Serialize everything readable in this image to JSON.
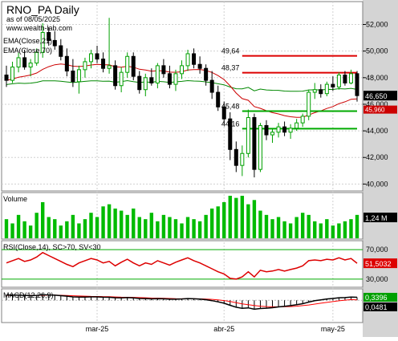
{
  "header": {
    "title": "RNO_PA Daily",
    "date_line": "as of 08/05/2025",
    "site": "www.wealth-lab.com"
  },
  "colors": {
    "up": "#00a000",
    "down": "#000000",
    "ema21": "#cc0000",
    "ema70": "#008800",
    "support": "#00aa00",
    "resistance": "#dd0000",
    "axis_bg": "#d4d4d4",
    "grid": "#d0d0d0",
    "last_price_bg": "#000000",
    "rsi_line": "#dd0000",
    "macd_line": "#000000",
    "macd_signal": "#ff0000",
    "volume_bar": "#00bb00"
  },
  "chart_data": [
    {
      "type": "candlestick",
      "name": "price-panel",
      "indicators": [
        "EMA(Close,21)",
        "EMA(Close,70)"
      ],
      "ylim": [
        39.6,
        53.6
      ],
      "y_ticks": [
        "52,000",
        "50,000",
        "48,000",
        "46,000",
        "44,000",
        "42,000",
        "40,000"
      ],
      "y_tick_values": [
        52,
        50,
        48,
        46,
        44,
        42,
        40
      ],
      "x_labels": [
        "mar-25",
        "abr-25",
        "may-25"
      ],
      "x_label_index": [
        15,
        36,
        54
      ],
      "last_price": "46,650",
      "last_price_value": 46.65,
      "ema21_tag": "45,960",
      "ema21_tag_value": 45.96,
      "levels": [
        {
          "label": "49,64",
          "value": 49.64,
          "kind": "resistance",
          "start": 39,
          "end": 58
        },
        {
          "label": "48,37",
          "value": 48.37,
          "kind": "resistance",
          "start": 39,
          "end": 58
        },
        {
          "label": "45,48",
          "value": 45.48,
          "kind": "support",
          "start": 39,
          "end": 58
        },
        {
          "label": "44,16",
          "value": 44.16,
          "kind": "support",
          "start": 39,
          "end": 58
        }
      ],
      "ohlc": [
        [
          48.2,
          48.9,
          47.3,
          47.8
        ],
        [
          47.8,
          49.2,
          47.6,
          48.8
        ],
        [
          48.8,
          49.9,
          48.4,
          49.5
        ],
        [
          49.5,
          50.1,
          48.6,
          48.8
        ],
        [
          48.8,
          49.4,
          48.1,
          49.1
        ],
        [
          49.1,
          50.2,
          48.9,
          49.9
        ],
        [
          49.9,
          52.1,
          49.5,
          51.4
        ],
        [
          51.4,
          51.8,
          50.4,
          50.8
        ],
        [
          50.8,
          51.5,
          50.1,
          50.4
        ],
        [
          50.4,
          50.9,
          49.3,
          49.6
        ],
        [
          49.6,
          50.2,
          48.1,
          48.5
        ],
        [
          48.5,
          49.4,
          47.3,
          47.7
        ],
        [
          47.7,
          48.9,
          46.8,
          48.6
        ],
        [
          48.6,
          49.5,
          48.0,
          49.2
        ],
        [
          49.2,
          50.1,
          48.7,
          49.8
        ],
        [
          49.8,
          50.4,
          49.1,
          49.4
        ],
        [
          49.4,
          49.9,
          48.4,
          48.7
        ],
        [
          48.7,
          52.5,
          48.3,
          48.9
        ],
        [
          48.9,
          49.3,
          47.1,
          47.4
        ],
        [
          47.4,
          48.8,
          46.9,
          48.4
        ],
        [
          48.4,
          49.9,
          48.0,
          49.6
        ],
        [
          49.6,
          49.9,
          47.8,
          48.1
        ],
        [
          48.1,
          48.5,
          46.8,
          47.1
        ],
        [
          47.1,
          48.3,
          46.6,
          48.0
        ],
        [
          48.0,
          48.7,
          47.4,
          47.6
        ],
        [
          47.6,
          49.1,
          47.2,
          48.9
        ],
        [
          48.9,
          49.4,
          48.0,
          48.3
        ],
        [
          48.3,
          48.9,
          47.2,
          47.5
        ],
        [
          47.5,
          48.6,
          47.0,
          48.3
        ],
        [
          48.3,
          49.3,
          47.9,
          48.9
        ],
        [
          48.9,
          50.1,
          48.5,
          49.8
        ],
        [
          49.8,
          50.2,
          48.7,
          49.0
        ],
        [
          49.0,
          49.6,
          48.3,
          48.7
        ],
        [
          48.7,
          49.0,
          47.4,
          47.8
        ],
        [
          47.8,
          48.5,
          46.4,
          46.9
        ],
        [
          46.9,
          47.4,
          45.5,
          45.8
        ],
        [
          45.8,
          46.2,
          44.5,
          44.9
        ],
        [
          44.9,
          45.4,
          41.8,
          42.6
        ],
        [
          42.6,
          43.2,
          40.9,
          41.4
        ],
        [
          41.4,
          42.9,
          40.6,
          42.3
        ],
        [
          42.3,
          45.6,
          42.0,
          45.0
        ],
        [
          45.0,
          45.3,
          40.5,
          41.1
        ],
        [
          41.1,
          44.6,
          40.9,
          44.4
        ],
        [
          44.4,
          44.8,
          43.3,
          43.7
        ],
        [
          43.7,
          44.2,
          43.1,
          43.9
        ],
        [
          43.9,
          44.6,
          43.5,
          44.3
        ],
        [
          44.3,
          44.7,
          43.6,
          43.9
        ],
        [
          43.9,
          44.5,
          43.4,
          44.2
        ],
        [
          44.2,
          44.9,
          44.0,
          44.6
        ],
        [
          44.6,
          45.3,
          44.3,
          45.1
        ],
        [
          45.1,
          47.1,
          44.8,
          46.9
        ],
        [
          46.9,
          47.6,
          46.4,
          47.1
        ],
        [
          47.1,
          47.5,
          46.5,
          46.8
        ],
        [
          46.8,
          47.7,
          46.6,
          47.5
        ],
        [
          47.5,
          48.1,
          47.0,
          47.3
        ],
        [
          47.3,
          48.4,
          47.1,
          48.2
        ],
        [
          48.2,
          48.5,
          47.4,
          47.6
        ],
        [
          47.6,
          48.6,
          47.5,
          48.3
        ],
        [
          48.3,
          48.5,
          46.2,
          46.65
        ]
      ]
    },
    {
      "type": "bar",
      "name": "volume-panel",
      "title": "Volume",
      "last_value": "1,24 M",
      "values": [
        0.45,
        0.35,
        0.55,
        0.4,
        0.3,
        0.6,
        0.85,
        0.5,
        0.45,
        0.3,
        0.4,
        0.55,
        0.35,
        0.45,
        0.6,
        0.5,
        0.75,
        0.8,
        0.7,
        0.65,
        0.55,
        0.7,
        0.5,
        0.45,
        0.6,
        0.4,
        0.55,
        0.5,
        0.45,
        0.35,
        0.5,
        0.45,
        0.4,
        0.55,
        0.7,
        0.75,
        0.85,
        1.0,
        0.95,
        1.0,
        0.8,
        0.9,
        0.65,
        0.55,
        0.45,
        0.5,
        0.4,
        0.35,
        0.5,
        0.6,
        0.55,
        0.4,
        0.35,
        0.45,
        0.3,
        0.35,
        0.4,
        0.45,
        0.55
      ]
    },
    {
      "type": "line",
      "name": "rsi-panel",
      "title": "RSI(Close,14), SC>70, SV<30",
      "ylim": [
        20,
        80
      ],
      "y_ticks": [
        "70,000",
        "30,000"
      ],
      "y_tick_values": [
        70,
        30
      ],
      "last_value": "51,5032",
      "last_value_num": 51.5,
      "values": [
        52,
        55,
        58,
        54,
        56,
        60,
        66,
        62,
        58,
        54,
        50,
        47,
        52,
        55,
        58,
        56,
        52,
        54,
        48,
        53,
        57,
        52,
        48,
        52,
        50,
        55,
        52,
        49,
        53,
        56,
        59,
        55,
        52,
        48,
        44,
        40,
        37,
        31,
        30,
        33,
        40,
        33,
        42,
        40,
        41,
        43,
        41,
        43,
        45,
        48,
        55,
        56,
        55,
        57,
        56,
        59,
        56,
        58,
        51.5
      ]
    },
    {
      "type": "line",
      "name": "macd-panel",
      "title": "MACD(12,26,9)",
      "last_value": "0,3396",
      "last_value_num": 0.3396,
      "signal_last": "0,0481",
      "signal_last_num": 0.0481,
      "ylim": [
        -2.4,
        1.1
      ],
      "macd": [
        0.6,
        0.58,
        0.57,
        0.55,
        0.53,
        0.55,
        0.62,
        0.6,
        0.57,
        0.52,
        0.46,
        0.38,
        0.36,
        0.36,
        0.38,
        0.38,
        0.35,
        0.34,
        0.28,
        0.27,
        0.3,
        0.27,
        0.2,
        0.19,
        0.16,
        0.18,
        0.17,
        0.12,
        0.12,
        0.15,
        0.19,
        0.17,
        0.14,
        0.07,
        -0.04,
        -0.17,
        -0.33,
        -0.56,
        -0.78,
        -0.9,
        -0.85,
        -1.0,
        -0.92,
        -0.88,
        -0.83,
        -0.74,
        -0.68,
        -0.6,
        -0.5,
        -0.38,
        -0.2,
        -0.05,
        0.05,
        0.15,
        0.2,
        0.28,
        0.3,
        0.36,
        0.34
      ],
      "signal": [
        0.55,
        0.56,
        0.56,
        0.56,
        0.55,
        0.55,
        0.56,
        0.57,
        0.57,
        0.56,
        0.54,
        0.51,
        0.48,
        0.46,
        0.44,
        0.43,
        0.41,
        0.4,
        0.37,
        0.35,
        0.34,
        0.33,
        0.3,
        0.28,
        0.25,
        0.24,
        0.22,
        0.2,
        0.18,
        0.17,
        0.17,
        0.17,
        0.16,
        0.14,
        0.1,
        0.05,
        -0.03,
        -0.14,
        -0.27,
        -0.4,
        -0.49,
        -0.59,
        -0.66,
        -0.7,
        -0.73,
        -0.73,
        -0.72,
        -0.7,
        -0.66,
        -0.6,
        -0.52,
        -0.43,
        -0.33,
        -0.24,
        -0.15,
        -0.06,
        0.01,
        0.08,
        0.05
      ]
    }
  ]
}
